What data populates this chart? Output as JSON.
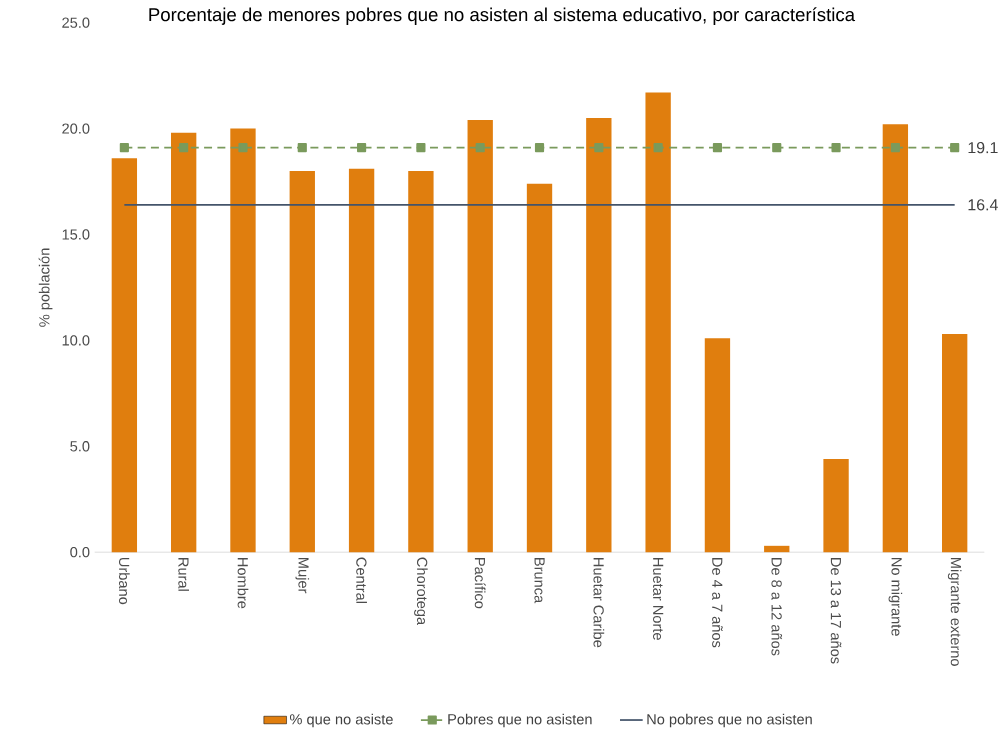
{
  "chart_data": {
    "type": "bar",
    "title": "Porcentaje de menores pobres que no asisten al sistema educativo, por característica",
    "ylabel": "% población",
    "categories": [
      "Urbano",
      "Rural",
      "Hombre",
      "Mujer",
      "Central",
      "Chorotega",
      "Pacífico",
      "Brunca",
      "Huetar Caribe",
      "Huetar Norte",
      "De 4 a 7 años",
      "De 8 a 12 años",
      "De 13 a 17 años",
      "No migrante",
      "Migrante externo"
    ],
    "series": [
      {
        "name": "% que no asiste",
        "color": "#e07e0e",
        "values": [
          18.6,
          19.8,
          20.0,
          18.0,
          18.1,
          18.0,
          20.4,
          17.4,
          20.5,
          21.7,
          10.1,
          0.3,
          4.4,
          20.2,
          10.3
        ]
      },
      {
        "name": "Pobres que no asisten",
        "type": "line",
        "color": "#7a9a5c",
        "marker": "square",
        "line_style": "dashed",
        "values": [
          19.1,
          19.1,
          19.1,
          19.1,
          19.1,
          19.1,
          19.1,
          19.1,
          19.1,
          19.1,
          19.1,
          19.1,
          19.1,
          19.1,
          19.1
        ],
        "value_labels": [
          null,
          null,
          null,
          null,
          null,
          null,
          null,
          null,
          null,
          null,
          null,
          null,
          null,
          null,
          "19.1"
        ]
      },
      {
        "name": "No pobres que no asisten",
        "type": "line",
        "color": "#44546a",
        "marker": "none",
        "line_style": "solid",
        "values": [
          16.4,
          16.4,
          16.4,
          16.4,
          16.4,
          16.4,
          16.4,
          16.4,
          16.4,
          16.4,
          16.4,
          16.4,
          16.4,
          16.4,
          16.4
        ],
        "value_labels": [
          null,
          null,
          null,
          null,
          null,
          null,
          null,
          null,
          null,
          null,
          null,
          null,
          null,
          null,
          "16.4"
        ]
      }
    ],
    "ylim": [
      0,
      25
    ],
    "yticks": [
      {
        "value": 0,
        "label": "0.0"
      },
      {
        "value": 5,
        "label": "5.0"
      },
      {
        "value": 10,
        "label": "10.0"
      },
      {
        "value": 15,
        "label": "15.0"
      },
      {
        "value": 20,
        "label": "20.0"
      },
      {
        "value": 25,
        "label": "25.0"
      }
    ],
    "legend": "bottom"
  }
}
